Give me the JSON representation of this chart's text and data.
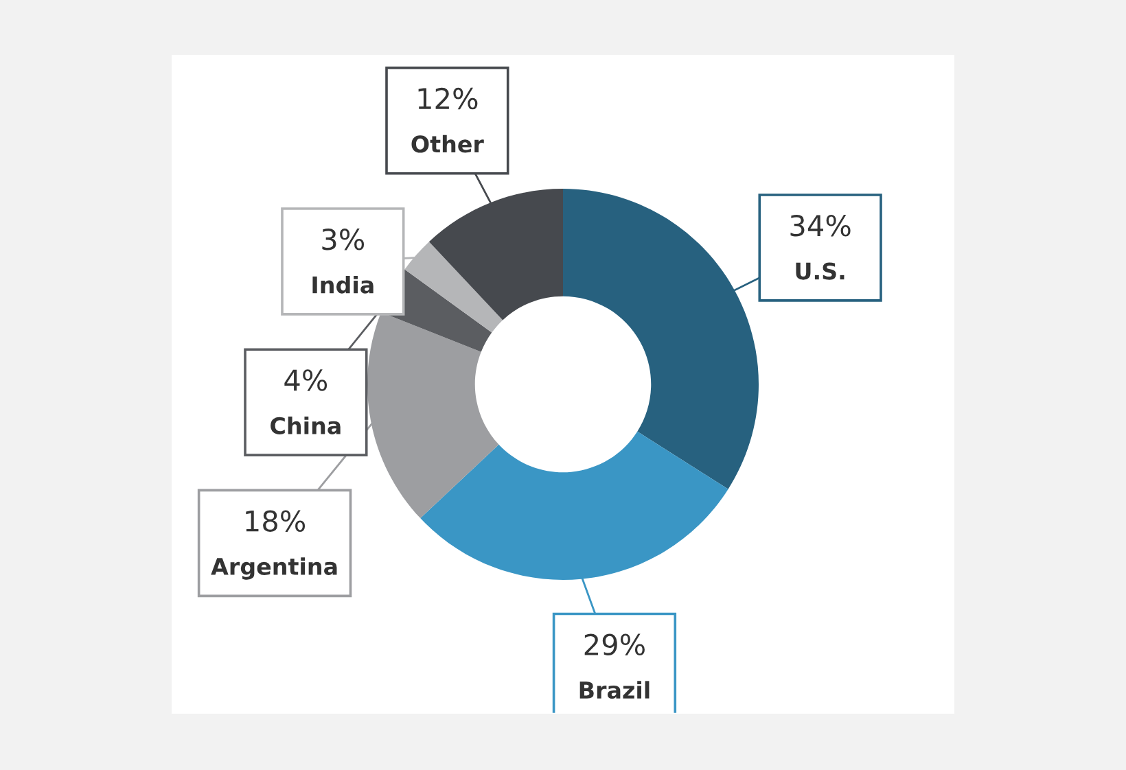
{
  "chart_data": {
    "type": "donut",
    "categories": [
      "U.S.",
      "Brazil",
      "Argentina",
      "China",
      "India",
      "Other"
    ],
    "values": [
      34,
      29,
      18,
      4,
      3,
      12
    ],
    "value_labels": [
      "34%",
      "29%",
      "18%",
      "4%",
      "3%",
      "12%"
    ],
    "colors": [
      "#27617f",
      "#3a96c5",
      "#9d9ea1",
      "#5b5d61",
      "#b5b6b8",
      "#46494e"
    ]
  }
}
